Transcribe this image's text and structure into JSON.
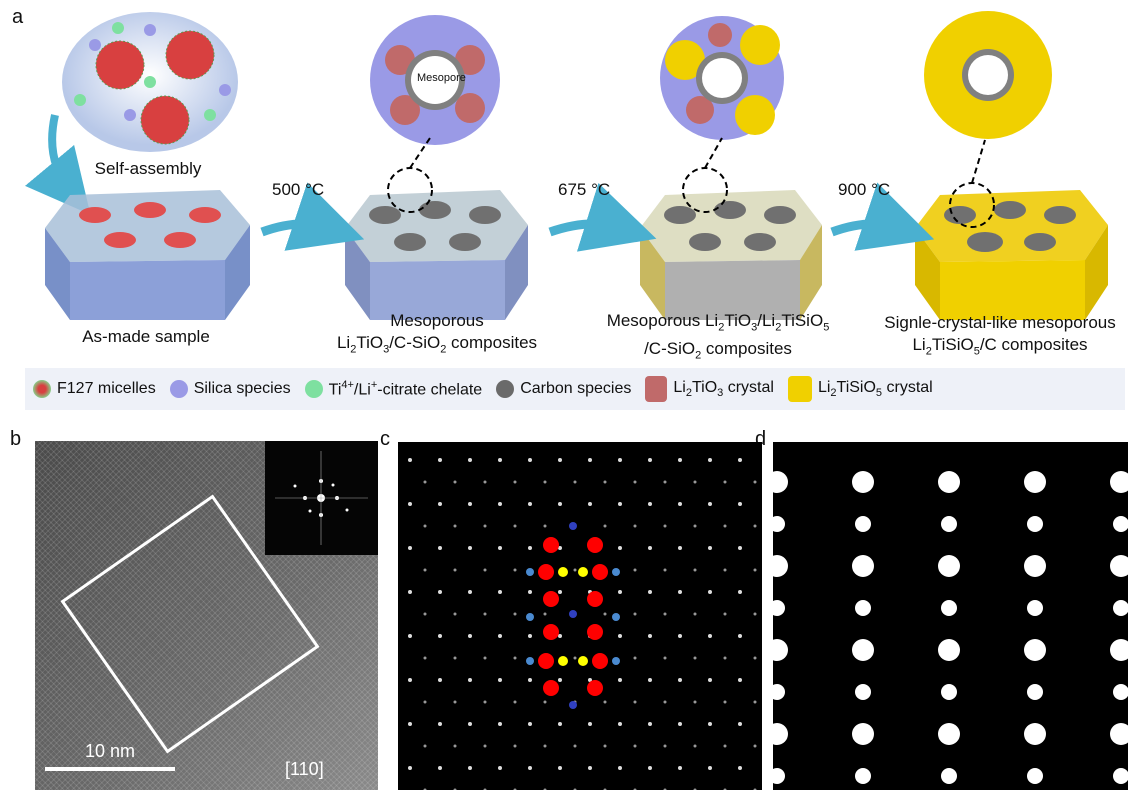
{
  "panel_labels": {
    "a": "a",
    "b": "b",
    "c": "c",
    "d": "d"
  },
  "steps": {
    "self_assembly": "Self-assembly",
    "as_made": "As-made sample",
    "t1": "500 °C",
    "t2": "675 °C",
    "t3": "900 °C",
    "mesopore": "Mesopore",
    "cap2": {
      "l1": "Mesoporous",
      "a": "Li",
      "s1": "2",
      "b": "TiO",
      "s2": "3",
      "c": "/C-SiO",
      "s3": "2",
      "d": " composites"
    },
    "cap3": {
      "a": "Mesoporous Li",
      "s1": "2",
      "b": "TiO",
      "s2": "3",
      "c": "/Li",
      "s3": "2",
      "d": "TiSiO",
      "s4": "5",
      "l2a": "/C-SiO",
      "s5": "2",
      "l2b": " composites"
    },
    "cap4": {
      "l1": "Signle-crystal-like mesoporous",
      "a": "Li",
      "s1": "2",
      "b": "TiSiO",
      "s2": "5",
      "c": "/C composites"
    }
  },
  "legend": {
    "f127": "F127 micelles",
    "silica": "Silica species",
    "ti_a": "Ti",
    "ti_sup1": "4+",
    "ti_b": "/Li",
    "ti_sup2": "+",
    "ti_c": "-citrate chelate",
    "carbon": "Carbon species",
    "lto_a": "Li",
    "lto_s1": "2",
    "lto_b": "TiO",
    "lto_s2": "3",
    "lto_c": " crystal",
    "ltso_a": "Li",
    "ltso_s1": "2",
    "ltso_b": "TiSiO",
    "ltso_s2": "5",
    "ltso_c": " crystal"
  },
  "panel_b": {
    "scale": "10 nm",
    "zone_axis": "[110]"
  },
  "colors": {
    "silica": "#9a9ae6",
    "chelate": "#7ee0a0",
    "carbon": "#6a6a6a",
    "lto": "#c06a6a",
    "ltso": "#f0d000",
    "arrow": "#4ab0d0",
    "legend_bg": "#eef1f8"
  }
}
